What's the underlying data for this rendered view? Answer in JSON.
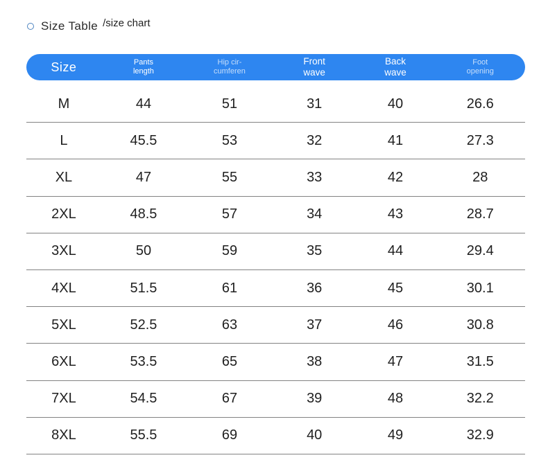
{
  "colors": {
    "header_bg": "#2e86f0",
    "header_text": "#ffffff",
    "header_text_dim": "rgba(255,255,255,0.72)",
    "row_text": "#1f1f1f",
    "divider": "#828282",
    "bullet_outline": "#4d84c0"
  },
  "title": {
    "main": "Size Table",
    "suffix": "/size chart"
  },
  "table": {
    "columns": [
      {
        "id": "size",
        "lines": [
          "Size"
        ],
        "style": "col-size"
      },
      {
        "id": "pants-length",
        "lines": [
          "Pants",
          "length"
        ],
        "style": "col-small"
      },
      {
        "id": "hip-circumference",
        "lines": [
          "Hip cir-",
          "cumferen"
        ],
        "style": "col-small col-dim"
      },
      {
        "id": "front-wave",
        "lines": [
          "Front",
          "wave"
        ],
        "style": "col-medium"
      },
      {
        "id": "back-wave",
        "lines": [
          "Back",
          "wave"
        ],
        "style": "col-medium"
      },
      {
        "id": "foot-opening",
        "lines": [
          "Foot",
          "opening"
        ],
        "style": "col-small col-dim"
      }
    ]
  },
  "chart_data": {
    "type": "table",
    "title": "Size Table /size chart",
    "columns": [
      "Size",
      "Pants length",
      "Hip circumferen",
      "Front wave",
      "Back wave",
      "Foot opening"
    ],
    "rows": [
      [
        "M",
        "44",
        "51",
        "31",
        "40",
        "26.6"
      ],
      [
        "L",
        "45.5",
        "53",
        "32",
        "41",
        "27.3"
      ],
      [
        "XL",
        "47",
        "55",
        "33",
        "42",
        "28"
      ],
      [
        "2XL",
        "48.5",
        "57",
        "34",
        "43",
        "28.7"
      ],
      [
        "3XL",
        "50",
        "59",
        "35",
        "44",
        "29.4"
      ],
      [
        "4XL",
        "51.5",
        "61",
        "36",
        "45",
        "30.1"
      ],
      [
        "5XL",
        "52.5",
        "63",
        "37",
        "46",
        "30.8"
      ],
      [
        "6XL",
        "53.5",
        "65",
        "38",
        "47",
        "31.5"
      ],
      [
        "7XL",
        "54.5",
        "67",
        "39",
        "48",
        "32.2"
      ],
      [
        "8XL",
        "55.5",
        "69",
        "40",
        "49",
        "32.9"
      ]
    ]
  }
}
